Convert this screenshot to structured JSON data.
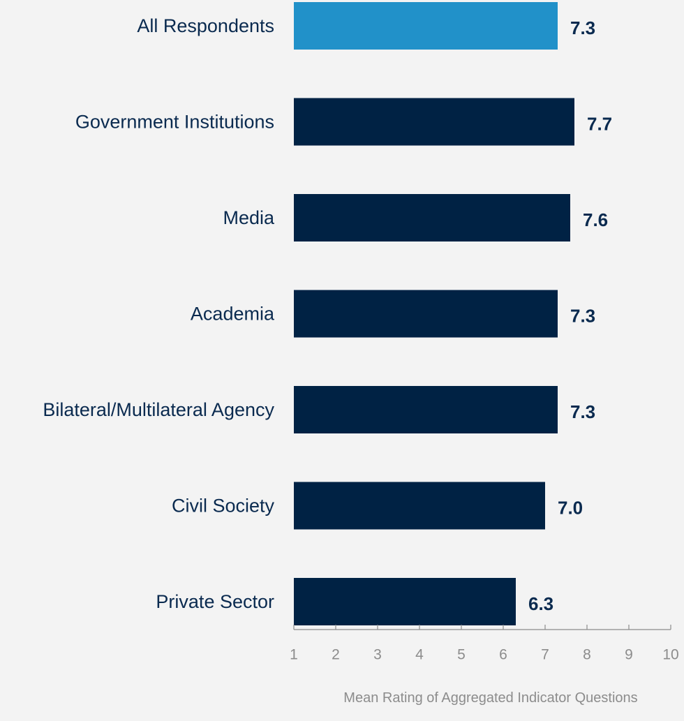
{
  "colors": {
    "background": "#f3f3f3",
    "highlight_bar": "#2191c9",
    "bar": "#002244",
    "text": "#0a2a4f",
    "axis": "#8c8c8c"
  },
  "chart_data": {
    "type": "bar",
    "orientation": "horizontal",
    "categories": [
      "All Respondents",
      "Government Institutions",
      "Media",
      "Academia",
      "Bilateral/Multilateral Agency",
      "Civil Society",
      "Private Sector"
    ],
    "values": [
      7.3,
      7.7,
      7.6,
      7.3,
      7.3,
      7.0,
      6.3
    ],
    "value_labels": [
      "7.3",
      "7.7",
      "7.6",
      "7.3",
      "7.3",
      "7.0",
      "6.3"
    ],
    "highlight_index": 0,
    "xlabel": "Mean Rating of Aggregated Indicator Questions",
    "xlim": [
      1,
      10
    ],
    "xticks": [
      1,
      2,
      3,
      4,
      5,
      6,
      7,
      8,
      9,
      10
    ],
    "grid": false,
    "legend": "none"
  }
}
